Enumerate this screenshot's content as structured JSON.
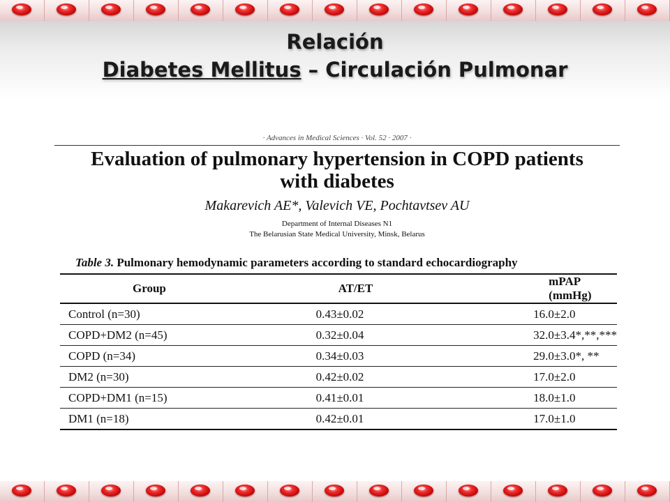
{
  "slide": {
    "title_line1": "Relación",
    "title_line2_part1": "Diabetes Mellitus",
    "title_line2_part2": " – Circulación Pulmonar"
  },
  "paper": {
    "journal_header": "· Advances in Medical Sciences · Vol. 52 · 2007 ·",
    "title_line1": "Evaluation of pulmonary hypertension in COPD patients",
    "title_line2": "with diabetes",
    "authors": "Makarevich AE*, Valevich VE, Pochtavtsev AU",
    "affiliation_line1": "Department of Internal Diseases N1",
    "affiliation_line2": "The Belarusian State Medical University, Minsk, Belarus",
    "table_caption_label": "Table 3.",
    "table_caption_text": " Pulmonary hemodynamic parameters according to standard echocardiography",
    "table": {
      "headers": [
        "Group",
        "AT/ET",
        "mPAP (mmHg)"
      ],
      "rows": [
        [
          "Control (n=30)",
          "0.43±0.02",
          "16.0±2.0"
        ],
        [
          "COPD+DM2 (n=45)",
          "0.32±0.04",
          "32.0±3.4*,**,***"
        ],
        [
          "COPD (n=34)",
          "0.34±0.03",
          "29.0±3.0*, **"
        ],
        [
          "DM2 (n=30)",
          "0.42±0.02",
          "17.0±2.0"
        ],
        [
          "COPD+DM1 (n=15)",
          "0.41±0.01",
          "18.0±1.0"
        ],
        [
          "DM1 (n=18)",
          "0.42±0.01",
          "17.0±1.0"
        ]
      ]
    }
  },
  "colors": {
    "bead": "#d01010",
    "strip_background": "#f3dede",
    "title_text": "#1a1a1a"
  },
  "icons": {
    "strip_bead": "red-oval-bead-icon"
  }
}
